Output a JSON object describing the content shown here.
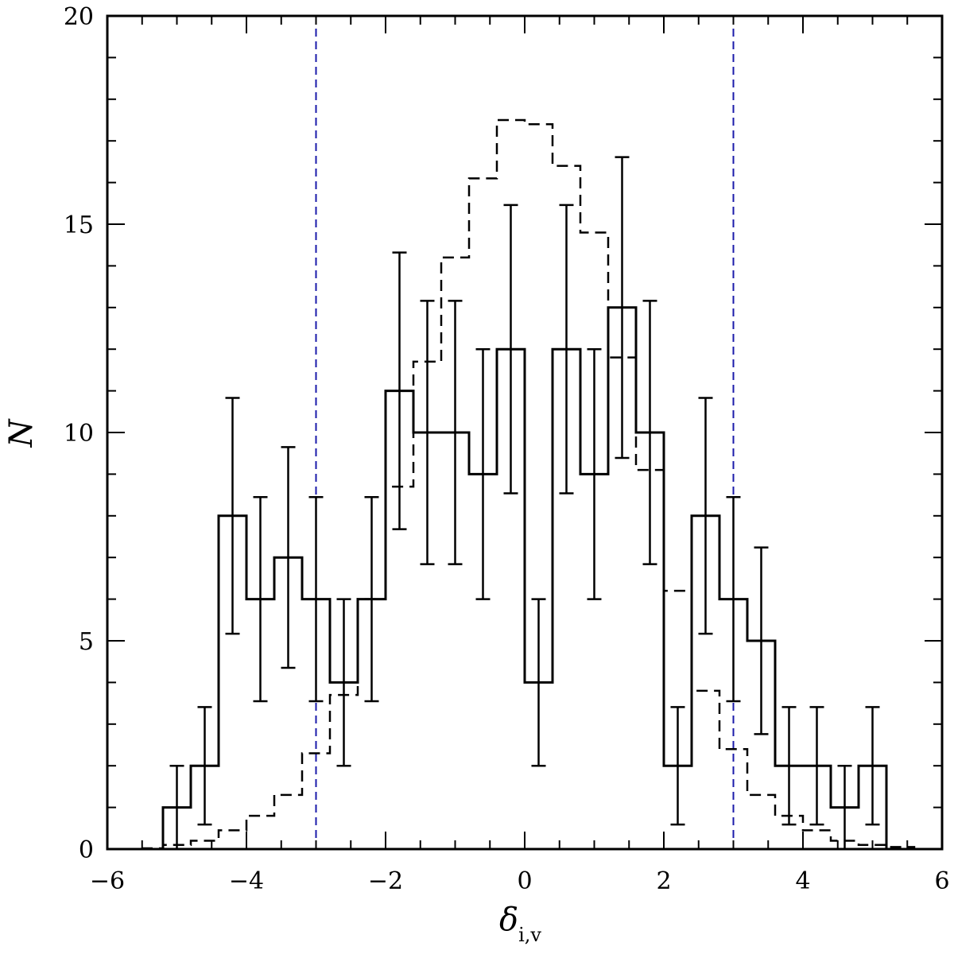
{
  "chart_data": {
    "type": "bar",
    "title": "",
    "xlabel": "δ",
    "xlabel_subscript": "i,v",
    "ylabel": "N",
    "xlim": [
      -6,
      6
    ],
    "ylim": [
      0,
      20
    ],
    "x_ticks": [
      -6,
      -4,
      -2,
      0,
      2,
      4,
      6
    ],
    "x_tick_labels": [
      "−6",
      "−4",
      "−2",
      "0",
      "2",
      "4",
      "6"
    ],
    "y_ticks": [
      0,
      5,
      10,
      15,
      20
    ],
    "y_tick_labels": [
      "0",
      "5",
      "10",
      "15",
      "20"
    ],
    "grid": false,
    "reference_lines": [
      {
        "x": -3,
        "color": "#1a1aaa",
        "style": "dashed"
      },
      {
        "x": 3,
        "color": "#1a1aaa",
        "style": "dashed"
      }
    ],
    "series": [
      {
        "style": "solid-step-with-errorbars",
        "color": "#000000",
        "bin_edges": [
          -5.2,
          -4.8,
          -4.4,
          -4.0,
          -3.6,
          -3.2,
          -2.8,
          -2.4,
          -2.0,
          -1.6,
          -1.2,
          -0.8,
          -0.4,
          0.0,
          0.4,
          0.8,
          1.2,
          1.6,
          2.0,
          2.4,
          2.8,
          3.2,
          3.6,
          4.0,
          4.4,
          4.8,
          5.2
        ],
        "values": [
          1,
          2,
          8,
          6,
          7,
          6,
          4,
          6,
          11,
          10,
          10,
          9,
          12,
          4,
          12,
          9,
          13,
          10,
          2,
          8,
          6,
          5,
          2,
          2,
          1,
          2
        ],
        "errors": [
          1.0,
          1.41,
          2.83,
          2.45,
          2.65,
          2.45,
          2.0,
          2.45,
          3.32,
          3.16,
          3.16,
          3.0,
          3.46,
          2.0,
          3.46,
          3.0,
          3.61,
          3.16,
          1.41,
          2.83,
          2.45,
          2.24,
          1.41,
          1.41,
          1.0,
          1.41
        ]
      },
      {
        "style": "dashed-step",
        "color": "#000000",
        "bin_edges": [
          -6.0,
          -5.6,
          -5.2,
          -4.8,
          -4.4,
          -4.0,
          -3.6,
          -3.2,
          -2.8,
          -2.4,
          -2.0,
          -1.6,
          -1.2,
          -0.8,
          -0.4,
          0.0,
          0.4,
          0.8,
          1.2,
          1.6,
          2.0,
          2.4,
          2.8,
          3.2,
          3.6,
          4.0,
          4.4,
          4.8,
          5.2,
          5.6,
          6.0
        ],
        "values": [
          0.0,
          0.02,
          0.1,
          0.2,
          0.45,
          0.8,
          1.3,
          2.3,
          3.7,
          6.0,
          8.7,
          11.7,
          14.2,
          16.1,
          17.5,
          17.4,
          16.4,
          14.8,
          11.8,
          9.1,
          6.2,
          3.8,
          2.4,
          1.3,
          0.8,
          0.45,
          0.2,
          0.1,
          0.05,
          0.0
        ]
      }
    ]
  }
}
